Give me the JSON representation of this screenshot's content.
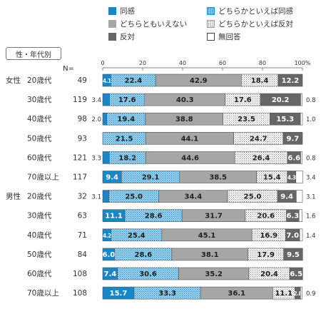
{
  "legend": [
    {
      "key": "agree",
      "label": "同感"
    },
    {
      "key": "somewhat_agree",
      "label": "どちらかといえば同感"
    },
    {
      "key": "neutral",
      "label": "どちらともいえない"
    },
    {
      "key": "somewhat_disagree",
      "label": "どちらかといえば反対"
    },
    {
      "key": "disagree",
      "label": "反対"
    },
    {
      "key": "no_answer",
      "label": "無回答"
    }
  ],
  "group_header": "性・年代別",
  "n_header": "N=",
  "colors": {
    "agree": "#1a85c7",
    "somewhat_agree": "#9fd3ee",
    "neutral": "#a6a6a6",
    "somewhat_disagree": "#ffffff",
    "disagree": "#666666",
    "no_answer": "#ffffff",
    "agree_label_text": "#ffffff",
    "dark_label_text": "#222222"
  },
  "chart_data": {
    "type": "bar",
    "orientation": "horizontal",
    "stacked": true,
    "xlim": [
      0,
      100
    ],
    "x_ticks": [
      "0",
      "20",
      "40",
      "60",
      "80",
      "100%"
    ],
    "series_order": [
      "agree",
      "somewhat_agree",
      "neutral",
      "somewhat_disagree",
      "disagree",
      "no_answer"
    ],
    "rows": [
      {
        "sex": "女性",
        "age": "20歳代",
        "n": "49",
        "values": [
          4.1,
          22.4,
          42.9,
          18.4,
          12.2,
          0.0
        ],
        "labels": [
          "4.1",
          "22.4",
          "42.9",
          "18.4",
          "12.2",
          ""
        ],
        "outside_left": "",
        "outside_right": ""
      },
      {
        "sex": "",
        "age": "30歳代",
        "n": "119",
        "values": [
          3.4,
          17.6,
          40.3,
          17.6,
          20.2,
          0.8
        ],
        "labels": [
          "",
          "17.6",
          "40.3",
          "17.6",
          "20.2",
          ""
        ],
        "outside_left": "3.4",
        "outside_right": "0.8"
      },
      {
        "sex": "",
        "age": "40歳代",
        "n": "98",
        "values": [
          2.0,
          19.4,
          38.8,
          23.5,
          15.3,
          1.0
        ],
        "labels": [
          "",
          "19.4",
          "38.8",
          "23.5",
          "15.3",
          ""
        ],
        "outside_left": "2.0",
        "outside_right": "1.0"
      },
      {
        "sex": "",
        "age": "50歳代",
        "n": "93",
        "values": [
          0.0,
          21.5,
          44.1,
          24.7,
          9.7,
          0.0
        ],
        "labels": [
          "",
          "21.5",
          "44.1",
          "24.7",
          "9.7",
          ""
        ],
        "outside_left": "",
        "outside_right": ""
      },
      {
        "sex": "",
        "age": "60歳代",
        "n": "121",
        "values": [
          3.3,
          18.2,
          44.6,
          26.4,
          6.6,
          0.8
        ],
        "labels": [
          "",
          "18.2",
          "44.6",
          "26.4",
          "6.6",
          ""
        ],
        "outside_left": "3.3",
        "outside_right": "0.8"
      },
      {
        "sex": "",
        "age": "70歳以上",
        "n": "117",
        "values": [
          9.4,
          29.1,
          38.5,
          15.4,
          4.3,
          3.4
        ],
        "labels": [
          "9.4",
          "29.1",
          "38.5",
          "15.4",
          "4.3",
          ""
        ],
        "outside_left": "",
        "outside_right": "3.4"
      },
      {
        "sex": "男性",
        "age": "20歳代",
        "n": "32",
        "values": [
          3.1,
          25.0,
          34.4,
          25.0,
          9.4,
          3.1
        ],
        "labels": [
          "",
          "25.0",
          "34.4",
          "25.0",
          "9.4",
          ""
        ],
        "outside_left": "3.1",
        "outside_right": "3.1"
      },
      {
        "sex": "",
        "age": "30歳代",
        "n": "63",
        "values": [
          11.1,
          28.6,
          31.7,
          20.6,
          6.3,
          1.6
        ],
        "labels": [
          "11.1",
          "28.6",
          "31.7",
          "20.6",
          "6.3",
          ""
        ],
        "outside_left": "",
        "outside_right": "1.6"
      },
      {
        "sex": "",
        "age": "40歳代",
        "n": "71",
        "values": [
          4.2,
          25.4,
          45.1,
          16.9,
          7.0,
          1.4
        ],
        "labels": [
          "4.2",
          "25.4",
          "45.1",
          "16.9",
          "7.0",
          ""
        ],
        "outside_left": "",
        "outside_right": "1.4"
      },
      {
        "sex": "",
        "age": "50歳代",
        "n": "84",
        "values": [
          6.0,
          28.6,
          38.1,
          17.9,
          9.5,
          0.0
        ],
        "labels": [
          "6.0",
          "28.6",
          "38.1",
          "17.9",
          "9.5",
          ""
        ],
        "outside_left": "",
        "outside_right": ""
      },
      {
        "sex": "",
        "age": "60歳代",
        "n": "108",
        "values": [
          7.4,
          30.6,
          35.2,
          20.4,
          6.5,
          0.0
        ],
        "labels": [
          "7.4",
          "30.6",
          "35.2",
          "20.4",
          "6.5",
          ""
        ],
        "outside_left": "",
        "outside_right": ""
      },
      {
        "sex": "",
        "age": "70歳以上",
        "n": "108",
        "values": [
          15.7,
          33.3,
          36.1,
          11.1,
          2.8,
          0.9
        ],
        "labels": [
          "15.7",
          "33.3",
          "36.1",
          "11.1",
          "2.8",
          ""
        ],
        "outside_left": "",
        "outside_right": "0.9"
      }
    ]
  }
}
